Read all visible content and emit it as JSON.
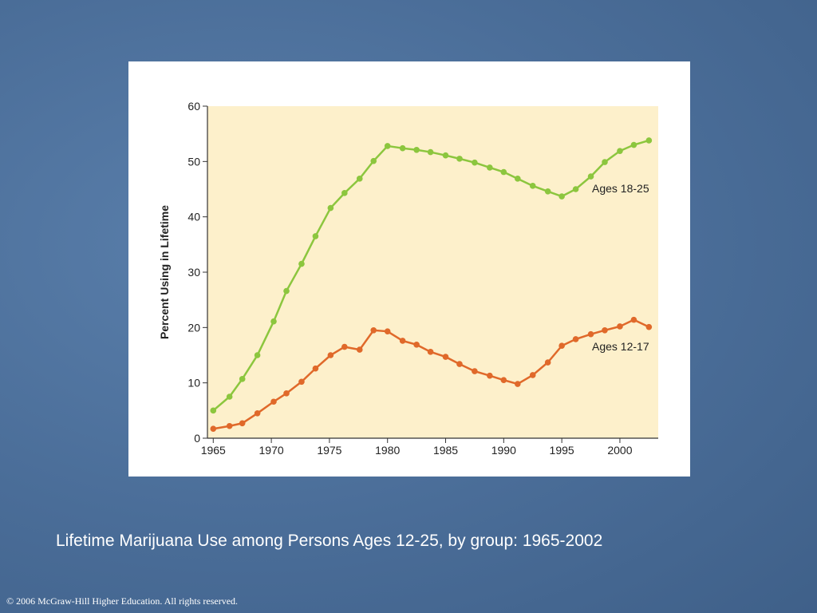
{
  "chart_data": {
    "type": "line",
    "y_label": "Percent Using in Lifetime",
    "caption": "Lifetime Marijuana Use among Persons Ages 12-25, by group: 1965-2002",
    "copyright": "© 2006 McGraw-Hill Higher Education. All rights reserved.",
    "x": [
      1965.0,
      1966.4,
      1967.5,
      1968.8,
      1970.2,
      1971.3,
      1972.6,
      1973.8,
      1975.1,
      1976.3,
      1977.6,
      1978.8,
      1980.0,
      1981.3,
      1982.5,
      1983.7,
      1985.0,
      1986.2,
      1987.5,
      1988.8,
      1990.0,
      1991.2,
      1992.5,
      1993.8,
      1995.0,
      1996.2,
      1997.5,
      1998.7,
      2000.0,
      2001.2,
      2002.5
    ],
    "series": [
      {
        "name": "Ages 18-25",
        "color": "#8cc63e",
        "values": [
          5.0,
          7.5,
          10.7,
          15.0,
          21.1,
          26.6,
          31.5,
          36.5,
          41.6,
          44.3,
          46.9,
          50.1,
          52.8,
          52.4,
          52.1,
          51.7,
          51.1,
          50.5,
          49.8,
          48.9,
          48.1,
          46.9,
          45.6,
          44.6,
          43.7,
          45.0,
          47.3,
          49.9,
          51.9,
          53.0,
          53.8
        ]
      },
      {
        "name": "Ages 12-17",
        "color": "#e0692a",
        "values": [
          1.7,
          2.2,
          2.7,
          4.5,
          6.6,
          8.1,
          10.2,
          12.6,
          15.0,
          16.5,
          16.0,
          19.5,
          19.3,
          17.6,
          16.9,
          15.6,
          14.7,
          13.4,
          12.1,
          11.3,
          10.5,
          9.8,
          11.4,
          13.7,
          16.7,
          17.9,
          18.8,
          19.5,
          20.2,
          21.4,
          20.1
        ]
      }
    ],
    "xlim": [
      1964.5,
      2003.3
    ],
    "xticks": [
      1965,
      1970,
      1975,
      1980,
      1985,
      1990,
      1995,
      2000
    ],
    "ylim": [
      0,
      60
    ],
    "yticks": [
      0,
      10,
      20,
      30,
      40,
      50,
      60
    ],
    "plot_background": "#fdf0cb"
  }
}
